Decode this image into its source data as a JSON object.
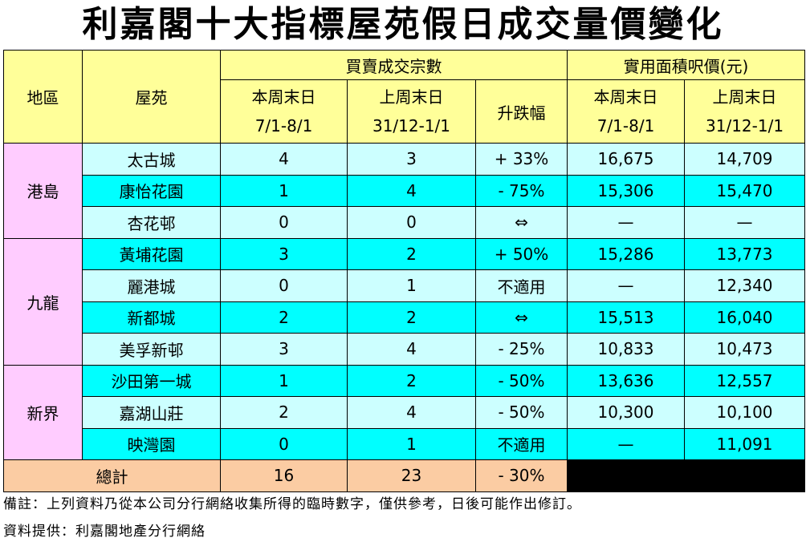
{
  "title": "利嘉閣十大指標屋苑假日成交量價變化",
  "header": {
    "district": "地區",
    "estate": "屋苑",
    "volume_group": "買賣成交宗數",
    "price_group": "實用面積呎價(元)",
    "this_weekend": "本周末日",
    "this_weekend_dates": "7/1-8/1",
    "last_weekend": "上周末日",
    "last_weekend_dates": "31/12-1/1",
    "change": "升跌幅"
  },
  "districts": [
    {
      "name": "港島",
      "rows": [
        {
          "estate": "太古城",
          "vol_this": "4",
          "vol_last": "3",
          "change": "+ 33%",
          "price_this": "16,675",
          "price_last": "14,709"
        },
        {
          "estate": "康怡花園",
          "vol_this": "1",
          "vol_last": "4",
          "change": "- 75%",
          "price_this": "15,306",
          "price_last": "15,470"
        },
        {
          "estate": "杏花邨",
          "vol_this": "0",
          "vol_last": "0",
          "change": "⇔",
          "price_this": "—",
          "price_last": "—"
        }
      ]
    },
    {
      "name": "九龍",
      "rows": [
        {
          "estate": "黃埔花園",
          "vol_this": "3",
          "vol_last": "2",
          "change": "+ 50%",
          "price_this": "15,286",
          "price_last": "13,773"
        },
        {
          "estate": "麗港城",
          "vol_this": "0",
          "vol_last": "1",
          "change": "不適用",
          "price_this": "—",
          "price_last": "12,340"
        },
        {
          "estate": "新都城",
          "vol_this": "2",
          "vol_last": "2",
          "change": "⇔",
          "price_this": "15,513",
          "price_last": "16,040"
        },
        {
          "estate": "美孚新邨",
          "vol_this": "3",
          "vol_last": "4",
          "change": "- 25%",
          "price_this": "10,833",
          "price_last": "10,473"
        }
      ]
    },
    {
      "name": "新界",
      "rows": [
        {
          "estate": "沙田第一城",
          "vol_this": "1",
          "vol_last": "2",
          "change": "- 50%",
          "price_this": "13,636",
          "price_last": "12,557"
        },
        {
          "estate": "嘉湖山莊",
          "vol_this": "2",
          "vol_last": "4",
          "change": "- 50%",
          "price_this": "10,300",
          "price_last": "10,100"
        },
        {
          "estate": "映灣園",
          "vol_this": "0",
          "vol_last": "1",
          "change": "不適用",
          "price_this": "—",
          "price_last": "11,091"
        }
      ]
    }
  ],
  "total": {
    "label": "總計",
    "vol_this": "16",
    "vol_last": "23",
    "change": "- 30%"
  },
  "notes": {
    "remark": "備註：上列資料乃從本公司分行網絡收集所得的臨時數字，僅供參考，日後可能作出修訂。",
    "source": "資料提供：利嘉閣地產分行網絡"
  },
  "colors": {
    "header": "#ffff99",
    "district": "#ffccff",
    "row_light": "#ccffff",
    "row_cyan": "#00ffff",
    "total": "#fbcca3",
    "filler": "#000000"
  }
}
